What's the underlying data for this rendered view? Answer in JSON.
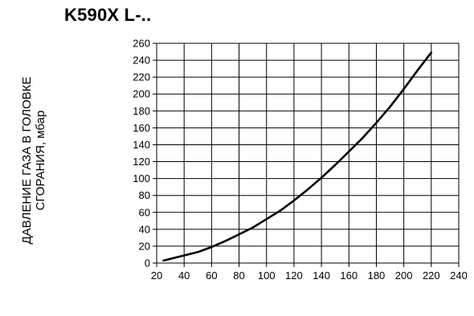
{
  "chart_data": {
    "type": "line",
    "title": "K590X L-..",
    "ylabel_lines": [
      "ДАВЛЕНИЕ ГАЗА В ГОЛОВКЕ",
      "СГОРАНИЯ, мбар"
    ],
    "xlabel": "",
    "xlim": [
      20,
      240
    ],
    "ylim": [
      0,
      260
    ],
    "xticks": [
      20,
      40,
      60,
      80,
      100,
      120,
      140,
      160,
      180,
      200,
      220,
      240
    ],
    "yticks": [
      0,
      20,
      40,
      60,
      80,
      100,
      120,
      140,
      160,
      180,
      200,
      220,
      240,
      260
    ],
    "grid": true,
    "series": [
      {
        "x": [
          25,
          30,
          40,
          50,
          60,
          70,
          80,
          90,
          100,
          110,
          120,
          130,
          140,
          150,
          160,
          170,
          180,
          190,
          200,
          210,
          220
        ],
        "y": [
          3,
          5,
          9,
          13,
          19,
          26,
          34,
          42,
          52,
          62,
          74,
          87,
          101,
          116,
          132,
          148,
          166,
          185,
          206,
          228,
          249
        ],
        "color": "#000000"
      }
    ]
  }
}
